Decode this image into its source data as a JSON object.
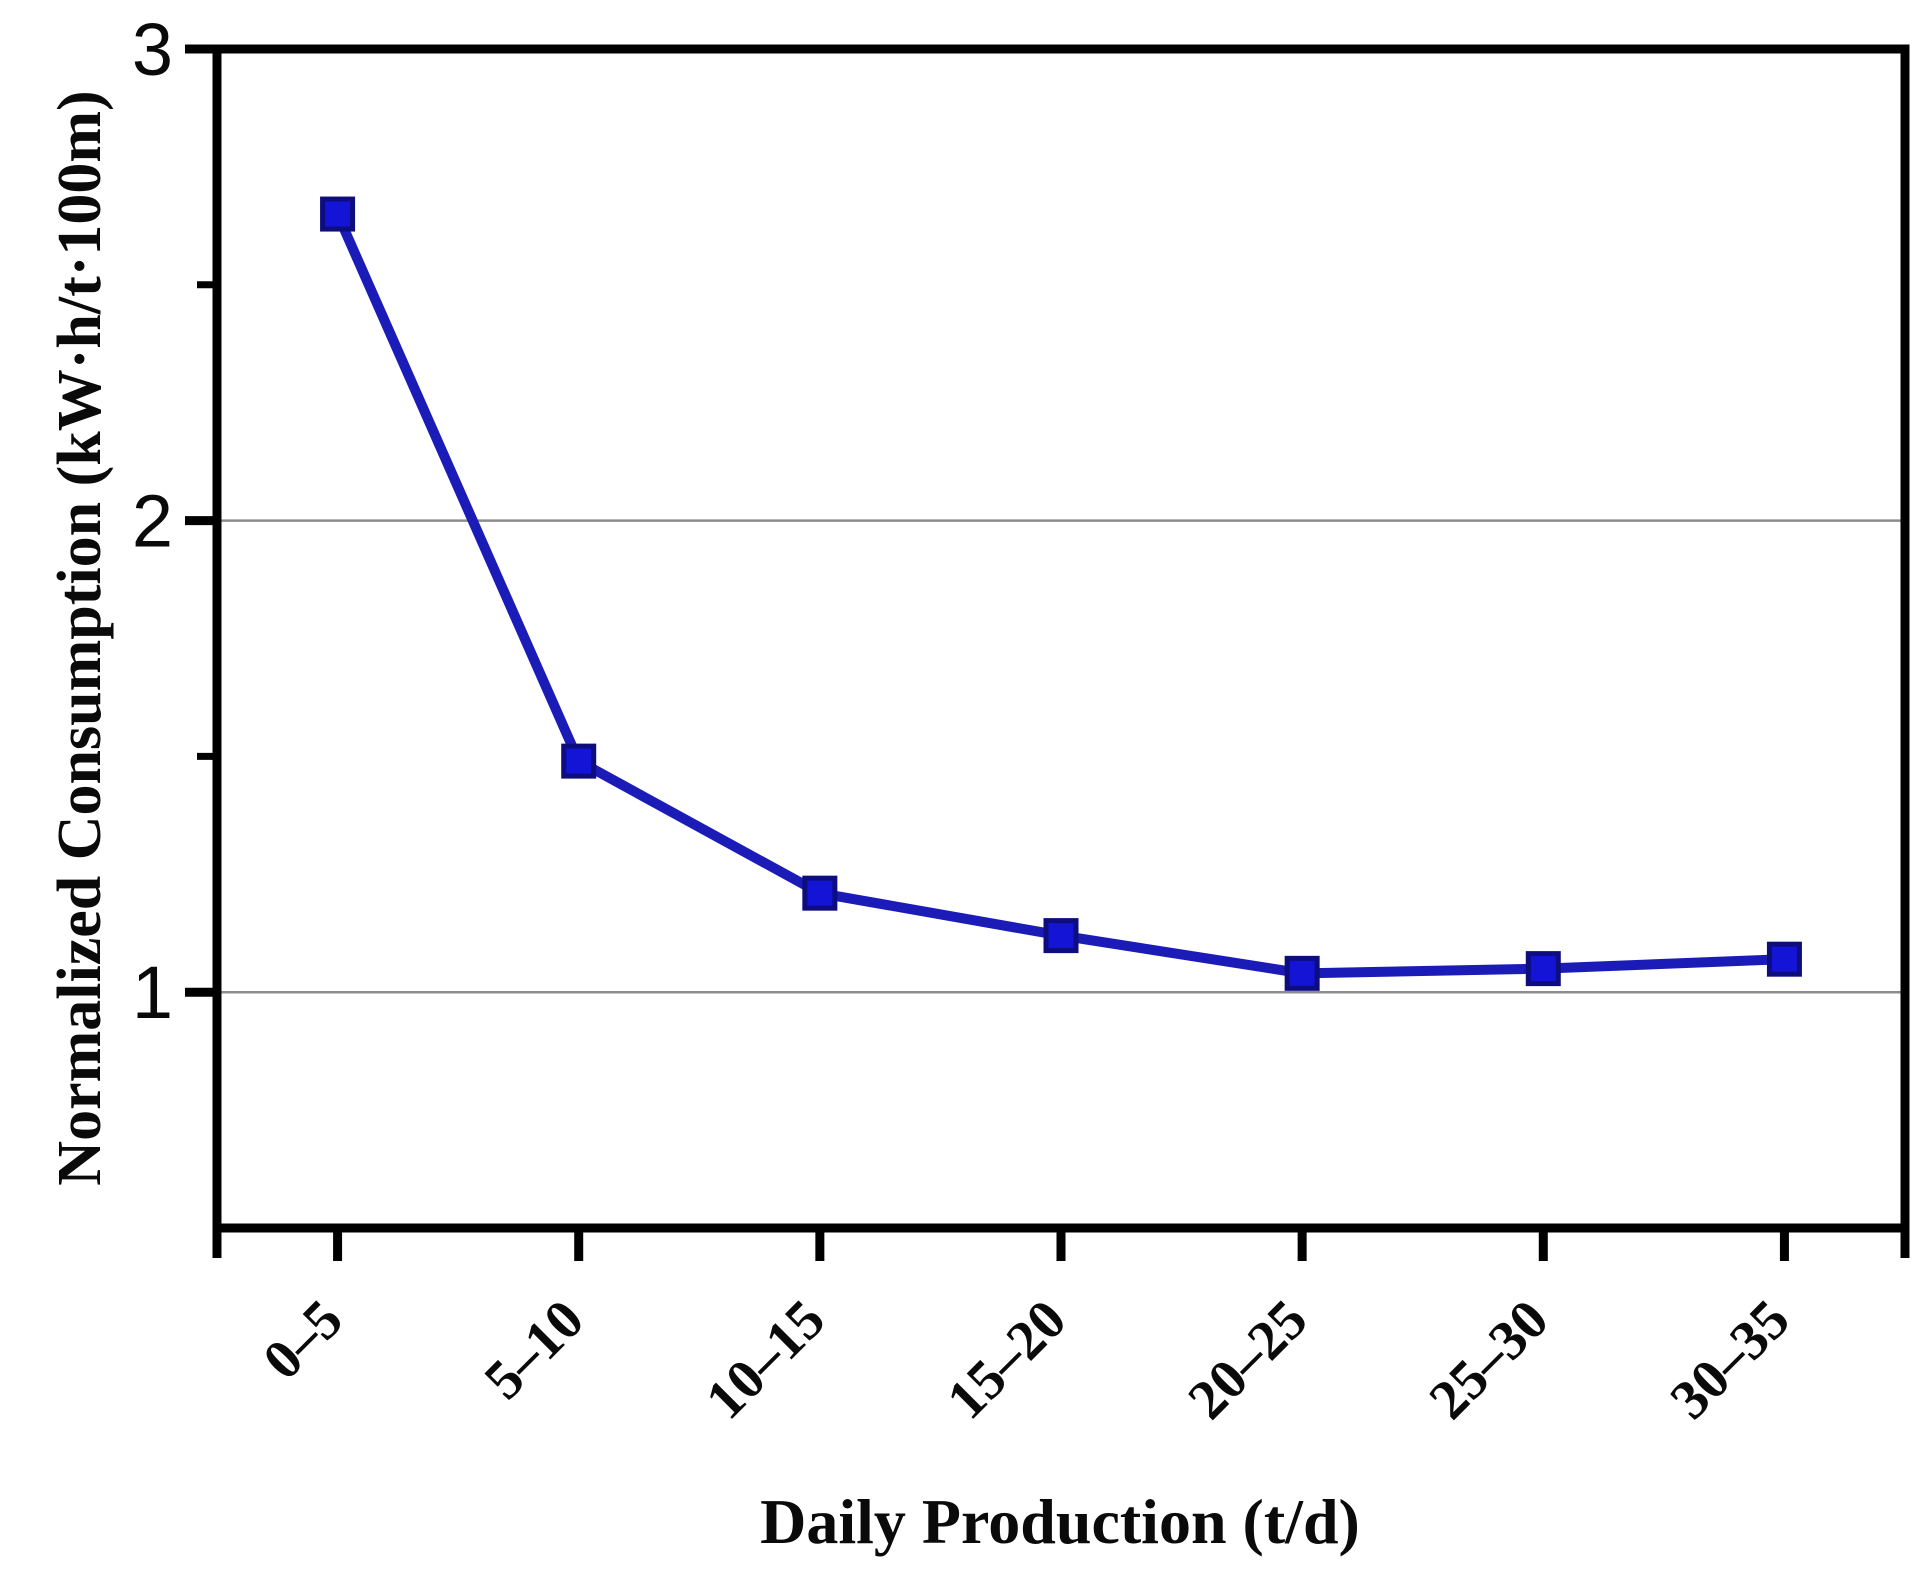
{
  "chart_data": {
    "type": "line",
    "title": "",
    "categories": [
      "0–5",
      "5–10",
      "10–15",
      "15–20",
      "20–25",
      "25–30",
      "30–35"
    ],
    "series": [
      {
        "name": "Normalized Consumption",
        "values": [
          2.65,
          1.49,
          1.21,
          1.12,
          1.04,
          1.05,
          1.07
        ]
      }
    ],
    "xlabel": "Daily Production (t/d)",
    "ylabel": "Normalized Consumption (kW·h/t·100m)",
    "ylim": [
      0.5,
      3
    ],
    "y_major_ticks": [
      3,
      2,
      1
    ],
    "y_tick_labels": [
      "3",
      "2",
      "1"
    ],
    "y_minor_ticks": [
      2.5,
      1.5
    ],
    "gridline_values": [
      2,
      1
    ],
    "grid": "horizontal-major-only",
    "legend": "none",
    "marker": "square",
    "colors": {
      "line": "#1b1bb8",
      "marker_fill": "#1414d6",
      "marker_stroke": "#0d0d7e",
      "axis": "#000000",
      "grid": "#8c8c8c",
      "background": "#ffffff"
    }
  }
}
